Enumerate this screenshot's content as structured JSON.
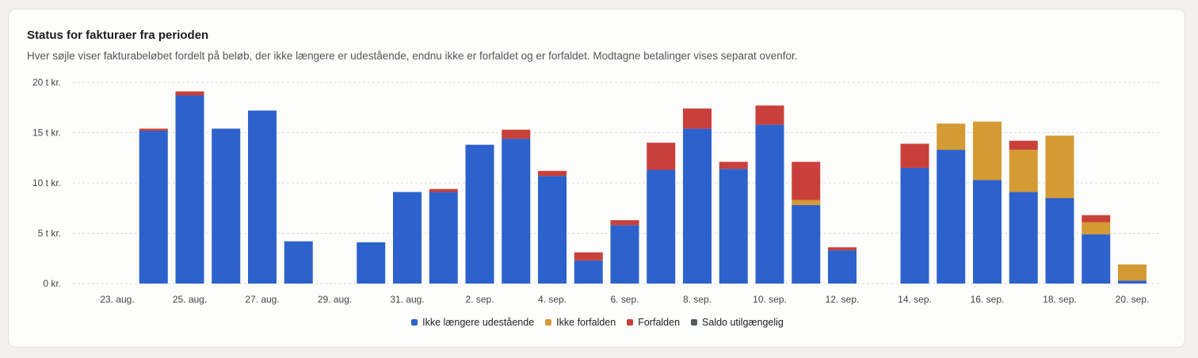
{
  "header": {
    "title": "Status for fakturaer fra perioden",
    "subtitle": "Hver søjle viser fakturabeløbet fordelt på beløb, der ikke længere er udestående, endnu ikke er forfaldet og er forfaldet. Modtagne betalinger vises separat ovenfor."
  },
  "chart_data": {
    "type": "bar",
    "stacked": true,
    "categories": [
      "23. aug.",
      "24. aug.",
      "25. aug.",
      "26. aug.",
      "27. aug.",
      "28. aug.",
      "29. aug.",
      "30. aug.",
      "31. aug.",
      "1. sep.",
      "2. sep.",
      "3. sep.",
      "4. sep.",
      "5. sep.",
      "6. sep.",
      "7. sep.",
      "8. sep.",
      "9. sep.",
      "10. sep.",
      "11. sep.",
      "12. sep.",
      "13. sep.",
      "14. sep.",
      "15. sep.",
      "16. sep.",
      "17. sep.",
      "18. sep.",
      "19. sep.",
      "20. sep."
    ],
    "tick_labels": [
      "23. aug.",
      "25. aug.",
      "27. aug.",
      "29. aug.",
      "31. aug.",
      "2. sep.",
      "4. sep.",
      "6. sep.",
      "8. sep.",
      "10. sep.",
      "12. sep.",
      "14. sep.",
      "16. sep.",
      "18. sep.",
      "20. sep."
    ],
    "y_ticks": [
      {
        "value": 0,
        "label": "0 kr."
      },
      {
        "value": 5000,
        "label": "5 t kr."
      },
      {
        "value": 10000,
        "label": "10 t kr."
      },
      {
        "value": 15000,
        "label": "15 t kr."
      },
      {
        "value": 20000,
        "label": "20 t kr."
      }
    ],
    "ylim": [
      0,
      20000
    ],
    "grid": true,
    "legend_position": "bottom-center",
    "series": [
      {
        "name": "Ikke længere udestående",
        "color": "#2d62cc",
        "values": [
          0,
          15200,
          18700,
          15400,
          17200,
          4200,
          0,
          4100,
          9100,
          9100,
          13800,
          14400,
          10700,
          2300,
          5800,
          11300,
          15400,
          11400,
          15800,
          7800,
          3300,
          0,
          11500,
          13300,
          10300,
          9100,
          8500,
          4900,
          300
        ]
      },
      {
        "name": "Ikke forfalden",
        "color": "#d49a33",
        "values": [
          0,
          0,
          0,
          0,
          0,
          0,
          0,
          0,
          0,
          0,
          0,
          0,
          0,
          0,
          0,
          0,
          0,
          0,
          0,
          500,
          0,
          0,
          0,
          2600,
          5800,
          4200,
          6200,
          1200,
          1600
        ]
      },
      {
        "name": "Forfalden",
        "color": "#c9403a",
        "values": [
          0,
          200,
          400,
          0,
          0,
          0,
          0,
          0,
          0,
          300,
          0,
          900,
          500,
          800,
          500,
          2700,
          2000,
          700,
          1900,
          3800,
          300,
          0,
          2400,
          0,
          0,
          900,
          0,
          700,
          0
        ]
      },
      {
        "name": "Saldo utilgængelig",
        "color": "#555a60",
        "values": [
          0,
          0,
          0,
          0,
          0,
          0,
          0,
          0,
          0,
          0,
          0,
          0,
          0,
          0,
          0,
          0,
          0,
          0,
          0,
          0,
          0,
          0,
          0,
          0,
          0,
          0,
          0,
          0,
          0
        ]
      }
    ]
  }
}
